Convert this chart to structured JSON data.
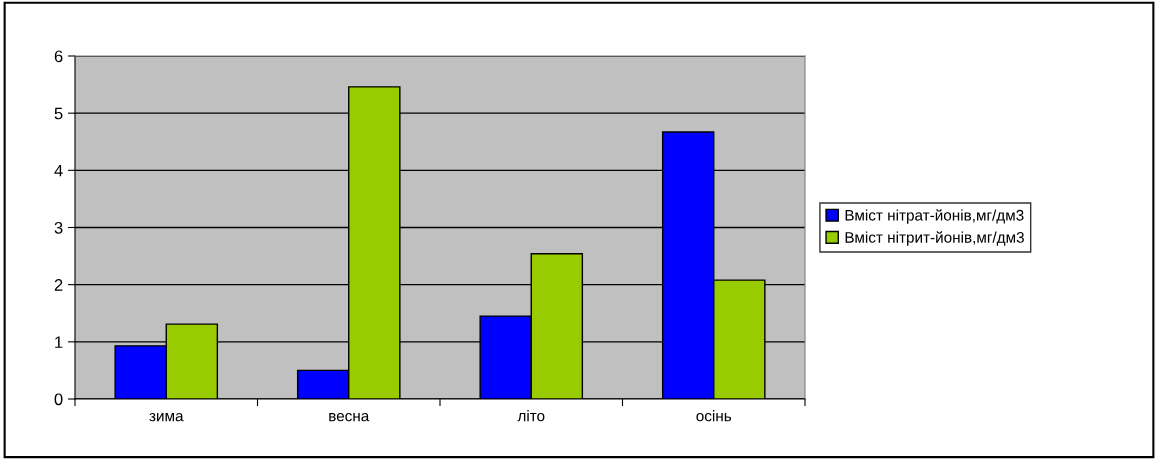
{
  "chart_data": {
    "type": "bar",
    "categories": [
      "зима",
      "весна",
      "літо",
      "осінь"
    ],
    "series": [
      {
        "name": "Вміст нітрат-йонів,мг/дм3",
        "color": "#0000ff",
        "values": [
          0.93,
          0.5,
          1.45,
          4.67
        ]
      },
      {
        "name": "Вміст нітрит-йонів,мг/дм3",
        "color": "#99cc00",
        "values": [
          1.31,
          5.46,
          2.54,
          2.08
        ]
      }
    ],
    "ylim": [
      0,
      6
    ],
    "yticks": [
      0,
      1,
      2,
      3,
      4,
      5,
      6
    ],
    "grid": "y",
    "legend": "right"
  }
}
